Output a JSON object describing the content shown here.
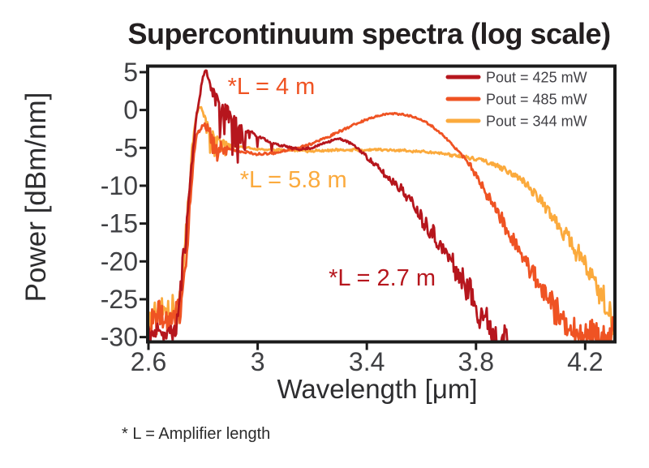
{
  "title": "Supercontinuum spectra (log scale)",
  "footnote": "* L = Amplifier length",
  "chart_data": {
    "type": "line",
    "title": "Supercontinuum spectra (log scale)",
    "xlabel": "Wavelength [μm]",
    "ylabel": "Power [dBm/nm]",
    "xlim": [
      2.597,
      4.309
    ],
    "ylim": [
      -30.63,
      5.8
    ],
    "xticks": [
      2.6,
      3.0,
      3.4,
      3.8,
      4.2
    ],
    "xtick_labels": [
      "2.6",
      "3",
      "3.4",
      "3.8",
      "4.2"
    ],
    "yticks": [
      5,
      0,
      -5,
      -10,
      -15,
      -20,
      -25,
      -30
    ],
    "ytick_labels": [
      "5",
      "0",
      "-5",
      "-10",
      "-15",
      "-20",
      "-25",
      "-30"
    ],
    "grid": false,
    "legend_position": "top-right-inside",
    "series": [
      {
        "name": "Pout = 425 mW",
        "color": "#b6161d",
        "noise_scale": 1.0,
        "annotation": {
          "text": "*L = 2.7 m",
          "x": 3.26,
          "y": -23.2
        },
        "points": [
          [
            2.597,
            -29.0
          ],
          [
            2.62,
            -29.6
          ],
          [
            2.64,
            -28.6
          ],
          [
            2.66,
            -30.0
          ],
          [
            2.68,
            -29.0
          ],
          [
            2.7,
            -29.3
          ],
          [
            2.712,
            -26
          ],
          [
            2.725,
            -21
          ],
          [
            2.74,
            -15
          ],
          [
            2.755,
            -8.5
          ],
          [
            2.768,
            -3.5
          ],
          [
            2.78,
            0
          ],
          [
            2.792,
            2.8
          ],
          [
            2.802,
            4.6
          ],
          [
            2.81,
            5.35
          ],
          [
            2.817,
            4.5
          ],
          [
            2.826,
            3.6
          ],
          [
            2.838,
            2.8
          ],
          [
            2.852,
            2.0
          ],
          [
            2.872,
            1.1
          ],
          [
            2.892,
            0.2
          ],
          [
            2.916,
            -0.9
          ],
          [
            2.945,
            -2.0
          ],
          [
            2.975,
            -2.9
          ],
          [
            3.0,
            -3.4
          ],
          [
            3.05,
            -4.3
          ],
          [
            3.1,
            -4.8
          ],
          [
            3.15,
            -5.15
          ],
          [
            3.2,
            -4.95
          ],
          [
            3.25,
            -4.3
          ],
          [
            3.29,
            -3.85
          ],
          [
            3.33,
            -4.2
          ],
          [
            3.37,
            -5.2
          ],
          [
            3.42,
            -6.9
          ],
          [
            3.47,
            -8.7
          ],
          [
            3.52,
            -10.2
          ],
          [
            3.57,
            -12.4
          ],
          [
            3.62,
            -15.2
          ],
          [
            3.67,
            -17.9
          ],
          [
            3.72,
            -20.6
          ],
          [
            3.76,
            -22.9
          ],
          [
            3.8,
            -25.6
          ],
          [
            3.835,
            -27.9
          ],
          [
            3.865,
            -29.3
          ],
          [
            3.9,
            -29.9
          ],
          [
            3.915,
            -30.3
          ]
        ],
        "hair": {
          "x0": 2.82,
          "x1": 2.99,
          "depth": 4.6
        },
        "spikes": [
          [
            2.862,
            5.2
          ],
          [
            2.906,
            5.4
          ],
          [
            2.927,
            5.6
          ],
          [
            2.955,
            3.0
          ],
          [
            3.0,
            1.5
          ],
          [
            3.05,
            1.0
          ]
        ],
        "amp_zones": [
          {
            "x0": 2.597,
            "x1": 2.712,
            "scale": 0.6
          }
        ]
      },
      {
        "name": "Pout = 485 mW",
        "color": "#ef5323",
        "noise_scale": 0.9,
        "annotation": {
          "text": "*L = 4 m",
          "x": 2.89,
          "y": 2.1
        },
        "points": [
          [
            2.597,
            -27.6
          ],
          [
            2.62,
            -28.3
          ],
          [
            2.645,
            -27.0
          ],
          [
            2.67,
            -28.0
          ],
          [
            2.695,
            -27.2
          ],
          [
            2.715,
            -26.8
          ],
          [
            2.728,
            -23.5
          ],
          [
            2.742,
            -17.5
          ],
          [
            2.756,
            -11
          ],
          [
            2.768,
            -5.8
          ],
          [
            2.778,
            -3.3
          ],
          [
            2.79,
            -2.6
          ],
          [
            2.8,
            -2.0
          ],
          [
            2.81,
            -1.8
          ],
          [
            2.822,
            -2.4
          ],
          [
            2.84,
            -3.3
          ],
          [
            2.86,
            -4.1
          ],
          [
            2.885,
            -4.8
          ],
          [
            2.92,
            -5.35
          ],
          [
            2.96,
            -5.65
          ],
          [
            3.0,
            -5.8
          ],
          [
            3.05,
            -5.7
          ],
          [
            3.1,
            -5.4
          ],
          [
            3.15,
            -4.95
          ],
          [
            3.2,
            -4.4
          ],
          [
            3.26,
            -3.5
          ],
          [
            3.32,
            -2.5
          ],
          [
            3.38,
            -1.5
          ],
          [
            3.44,
            -0.8
          ],
          [
            3.49,
            -0.5
          ],
          [
            3.54,
            -0.65
          ],
          [
            3.59,
            -1.2
          ],
          [
            3.64,
            -2.2
          ],
          [
            3.69,
            -3.7
          ],
          [
            3.74,
            -5.6
          ],
          [
            3.78,
            -7.4
          ],
          [
            3.82,
            -9.9
          ],
          [
            3.86,
            -12.4
          ],
          [
            3.9,
            -14.9
          ],
          [
            3.94,
            -17.4
          ],
          [
            3.98,
            -19.9
          ],
          [
            4.02,
            -22.4
          ],
          [
            4.06,
            -24.9
          ],
          [
            4.1,
            -27.1
          ],
          [
            4.14,
            -28.8
          ],
          [
            4.18,
            -29.6
          ],
          [
            4.23,
            -29.3
          ],
          [
            4.28,
            -29.8
          ],
          [
            4.309,
            -29.2
          ]
        ],
        "hair": {
          "x0": 2.8,
          "x1": 2.9,
          "depth": 2.4
        },
        "spikes": [
          [
            2.836,
            2.6
          ],
          [
            2.853,
            2.9
          ]
        ]
      },
      {
        "name": "Pout = 344 mW",
        "color": "#fbaa3d",
        "noise_scale": 0.9,
        "annotation": {
          "text": "*L = 5.8 m",
          "x": 2.935,
          "y": -10.2
        },
        "points": [
          [
            2.597,
            -26.8
          ],
          [
            2.62,
            -27.6
          ],
          [
            2.645,
            -26.4
          ],
          [
            2.668,
            -27.2
          ],
          [
            2.69,
            -26.3
          ],
          [
            2.71,
            -26.2
          ],
          [
            2.722,
            -23
          ],
          [
            2.736,
            -17
          ],
          [
            2.75,
            -10
          ],
          [
            2.763,
            -4.2
          ],
          [
            2.774,
            -1
          ],
          [
            2.784,
            0.2
          ],
          [
            2.792,
            0.45
          ],
          [
            2.8,
            -0.4
          ],
          [
            2.812,
            -1.3
          ],
          [
            2.825,
            -2.2
          ],
          [
            2.84,
            -3.0
          ],
          [
            2.865,
            -3.9
          ],
          [
            2.895,
            -4.5
          ],
          [
            2.93,
            -4.85
          ],
          [
            2.97,
            -5.05
          ],
          [
            3.02,
            -5.2
          ],
          [
            3.1,
            -5.3
          ],
          [
            3.2,
            -5.4
          ],
          [
            3.3,
            -5.3
          ],
          [
            3.4,
            -5.25
          ],
          [
            3.5,
            -5.3
          ],
          [
            3.6,
            -5.5
          ],
          [
            3.68,
            -5.8
          ],
          [
            3.74,
            -6.1
          ],
          [
            3.8,
            -6.5
          ],
          [
            3.86,
            -7.1
          ],
          [
            3.92,
            -8.1
          ],
          [
            3.97,
            -9.4
          ],
          [
            4.02,
            -11.2
          ],
          [
            4.07,
            -13.4
          ],
          [
            4.12,
            -15.9
          ],
          [
            4.17,
            -18.7
          ],
          [
            4.21,
            -21.2
          ],
          [
            4.25,
            -23.8
          ],
          [
            4.275,
            -25.8
          ],
          [
            4.295,
            -27.5
          ],
          [
            4.309,
            -28.3
          ]
        ],
        "hair": {
          "x0": 2.795,
          "x1": 2.905,
          "depth": 3.4
        },
        "spikes": [
          [
            2.826,
            3.4
          ],
          [
            2.841,
            3.0
          ]
        ]
      }
    ]
  }
}
